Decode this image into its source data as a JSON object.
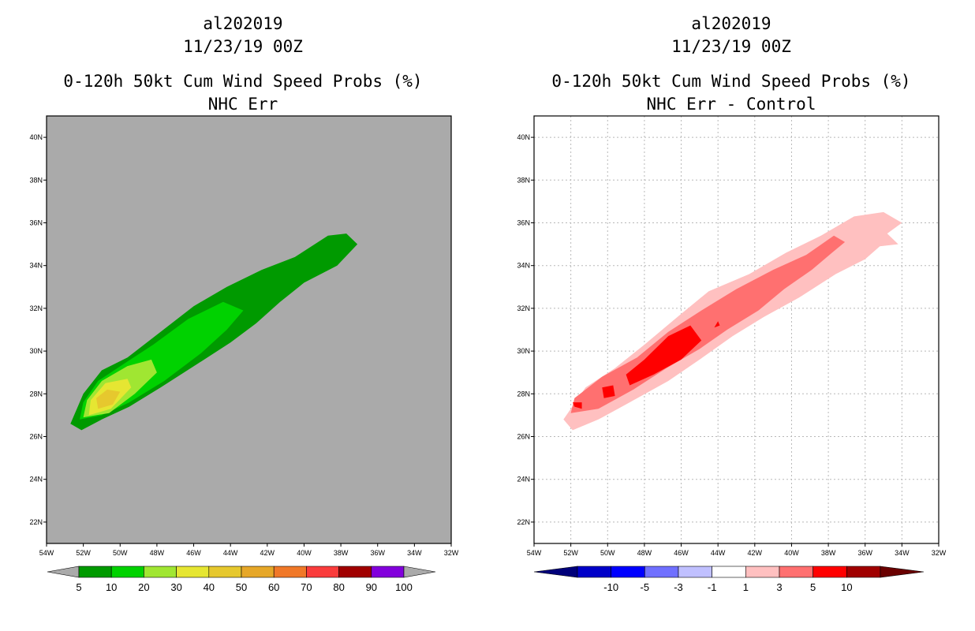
{
  "colors": {
    "land_gray": "#aaaaaa",
    "probs_levels": [
      "#009a00",
      "#00d200",
      "#a0e632",
      "#e6e632",
      "#e6c82e",
      "#e6a728",
      "#f07828",
      "#fa3c3c",
      "#a00000",
      "#8200dc"
    ],
    "diff_levels": [
      "#0000c8",
      "#0000ff",
      "#7070ff",
      "#c0c0ff",
      "#ffffff",
      "#ffc0c0",
      "#ff7070",
      "#ff0000",
      "#a00000"
    ]
  },
  "chart_data": [
    {
      "type": "contour",
      "title": [
        "al202019",
        "11/23/19 00Z",
        "0-120h 50kt Cum Wind Speed Probs (%)",
        "NHC Err"
      ],
      "xlabel": "",
      "ylabel": "",
      "xlim": [
        -54,
        -32
      ],
      "ylim": [
        21,
        41
      ],
      "x_ticks": [
        "54W",
        "52W",
        "50W",
        "48W",
        "46W",
        "44W",
        "42W",
        "40W",
        "38W",
        "36W",
        "34W",
        "32W"
      ],
      "y_ticks": [
        "22N",
        "24N",
        "26N",
        "28N",
        "30N",
        "32N",
        "34N",
        "36N",
        "38N",
        "40N"
      ],
      "colorbar": {
        "labels": [
          "5",
          "10",
          "20",
          "30",
          "40",
          "50",
          "60",
          "70",
          "80",
          "90",
          "100"
        ]
      },
      "regions": [
        {
          "level": "5-10",
          "lonlat": [
            [
              -52.7,
              26.6
            ],
            [
              -52.1,
              26.3
            ],
            [
              -51.0,
              26.8
            ],
            [
              -49.5,
              27.4
            ],
            [
              -47.8,
              28.3
            ],
            [
              -45.8,
              29.4
            ],
            [
              -44.0,
              30.4
            ],
            [
              -42.6,
              31.3
            ],
            [
              -41.3,
              32.3
            ],
            [
              -40.0,
              33.2
            ],
            [
              -38.2,
              34.0
            ],
            [
              -37.1,
              35.0
            ],
            [
              -37.7,
              35.5
            ],
            [
              -38.7,
              35.4
            ],
            [
              -40.5,
              34.4
            ],
            [
              -42.3,
              33.8
            ],
            [
              -44.2,
              33.0
            ],
            [
              -46.0,
              32.1
            ],
            [
              -47.8,
              30.9
            ],
            [
              -49.6,
              29.7
            ],
            [
              -51.0,
              29.1
            ],
            [
              -52.0,
              28.0
            ]
          ]
        },
        {
          "level": "10-20",
          "lonlat": [
            [
              -52.2,
              26.8
            ],
            [
              -51.0,
              27.0
            ],
            [
              -49.5,
              27.6
            ],
            [
              -47.6,
              28.6
            ],
            [
              -45.6,
              29.9
            ],
            [
              -44.2,
              31.0
            ],
            [
              -43.3,
              31.9
            ],
            [
              -44.4,
              32.3
            ],
            [
              -46.3,
              31.5
            ],
            [
              -48.2,
              30.3
            ],
            [
              -49.8,
              29.4
            ],
            [
              -51.2,
              28.6
            ],
            [
              -52.0,
              27.6
            ]
          ]
        },
        {
          "level": "20-30",
          "lonlat": [
            [
              -52.0,
              26.9
            ],
            [
              -50.6,
              27.1
            ],
            [
              -49.2,
              28.0
            ],
            [
              -48.0,
              29.0
            ],
            [
              -48.3,
              29.6
            ],
            [
              -49.6,
              29.3
            ],
            [
              -51.0,
              28.6
            ],
            [
              -51.8,
              27.7
            ]
          ]
        },
        {
          "level": "30-40",
          "lonlat": [
            [
              -51.7,
              27.0
            ],
            [
              -50.5,
              27.3
            ],
            [
              -49.4,
              28.3
            ],
            [
              -49.6,
              28.7
            ],
            [
              -50.8,
              28.5
            ],
            [
              -51.6,
              27.7
            ]
          ]
        },
        {
          "level": "40-50",
          "lonlat": [
            [
              -51.2,
              27.3
            ],
            [
              -50.4,
              27.5
            ],
            [
              -50.0,
              28.1
            ],
            [
              -50.7,
              28.2
            ],
            [
              -51.3,
              27.8
            ]
          ]
        }
      ]
    },
    {
      "type": "contour",
      "title": [
        "al202019",
        "11/23/19 00Z",
        "0-120h 50kt Cum Wind Speed Probs (%)",
        "NHC Err - Control"
      ],
      "xlabel": "",
      "ylabel": "",
      "xlim": [
        -54,
        -32
      ],
      "ylim": [
        21,
        41
      ],
      "x_ticks": [
        "54W",
        "52W",
        "50W",
        "48W",
        "46W",
        "44W",
        "42W",
        "40W",
        "38W",
        "36W",
        "34W",
        "32W"
      ],
      "y_ticks": [
        "22N",
        "24N",
        "26N",
        "28N",
        "30N",
        "32N",
        "34N",
        "36N",
        "38N",
        "40N"
      ],
      "colorbar": {
        "labels": [
          "-10",
          "-5",
          "-3",
          "-1",
          "1",
          "3",
          "5",
          "10"
        ]
      },
      "regions": [
        {
          "level": "1-3",
          "lonlat": [
            [
              -52.4,
              26.8
            ],
            [
              -51.9,
              26.3
            ],
            [
              -50.5,
              26.8
            ],
            [
              -48.8,
              27.6
            ],
            [
              -46.7,
              28.6
            ],
            [
              -45.0,
              29.6
            ],
            [
              -43.2,
              30.7
            ],
            [
              -41.5,
              31.6
            ],
            [
              -39.6,
              32.5
            ],
            [
              -37.6,
              33.6
            ],
            [
              -36.0,
              34.3
            ],
            [
              -35.2,
              34.9
            ],
            [
              -34.2,
              35.0
            ],
            [
              -34.8,
              35.5
            ],
            [
              -34.0,
              36.0
            ],
            [
              -35.0,
              36.5
            ],
            [
              -36.6,
              36.3
            ],
            [
              -38.4,
              35.4
            ],
            [
              -40.3,
              34.6
            ],
            [
              -42.3,
              33.6
            ],
            [
              -44.5,
              32.8
            ],
            [
              -46.2,
              31.6
            ],
            [
              -48.0,
              30.3
            ],
            [
              -49.6,
              29.2
            ],
            [
              -51.2,
              28.3
            ]
          ]
        },
        {
          "level": "3-5",
          "lonlat": [
            [
              -52.0,
              27.1
            ],
            [
              -50.5,
              27.3
            ],
            [
              -48.6,
              28.2
            ],
            [
              -46.8,
              29.2
            ],
            [
              -45.0,
              30.1
            ],
            [
              -43.5,
              31.0
            ],
            [
              -41.8,
              31.9
            ],
            [
              -40.4,
              32.9
            ],
            [
              -38.9,
              33.8
            ],
            [
              -37.8,
              34.6
            ],
            [
              -37.1,
              35.1
            ],
            [
              -37.7,
              35.4
            ],
            [
              -39.2,
              34.5
            ],
            [
              -41.0,
              33.8
            ],
            [
              -43.0,
              32.9
            ],
            [
              -44.9,
              31.9
            ],
            [
              -46.7,
              30.9
            ],
            [
              -48.4,
              29.7
            ],
            [
              -50.3,
              28.8
            ],
            [
              -51.8,
              27.8
            ]
          ]
        },
        {
          "level": "5-10",
          "lonlat": [
            [
              -48.8,
              28.4
            ],
            [
              -47.5,
              28.9
            ],
            [
              -46.0,
              29.6
            ],
            [
              -44.9,
              30.5
            ],
            [
              -45.5,
              31.2
            ],
            [
              -46.7,
              30.7
            ],
            [
              -48.0,
              29.6
            ],
            [
              -49.0,
              28.9
            ]
          ]
        },
        {
          "level": "5-10",
          "lonlat": [
            [
              -50.2,
              27.8
            ],
            [
              -49.6,
              27.9
            ],
            [
              -49.7,
              28.4
            ],
            [
              -50.3,
              28.3
            ]
          ]
        },
        {
          "level": "5-10",
          "lonlat": [
            [
              -51.8,
              27.4
            ],
            [
              -51.4,
              27.3
            ],
            [
              -51.4,
              27.6
            ],
            [
              -51.9,
              27.6
            ]
          ]
        },
        {
          "level": "5-10",
          "lonlat": [
            [
              -44.2,
              31.1
            ],
            [
              -43.9,
              31.2
            ],
            [
              -44.0,
              31.4
            ]
          ]
        }
      ]
    }
  ]
}
